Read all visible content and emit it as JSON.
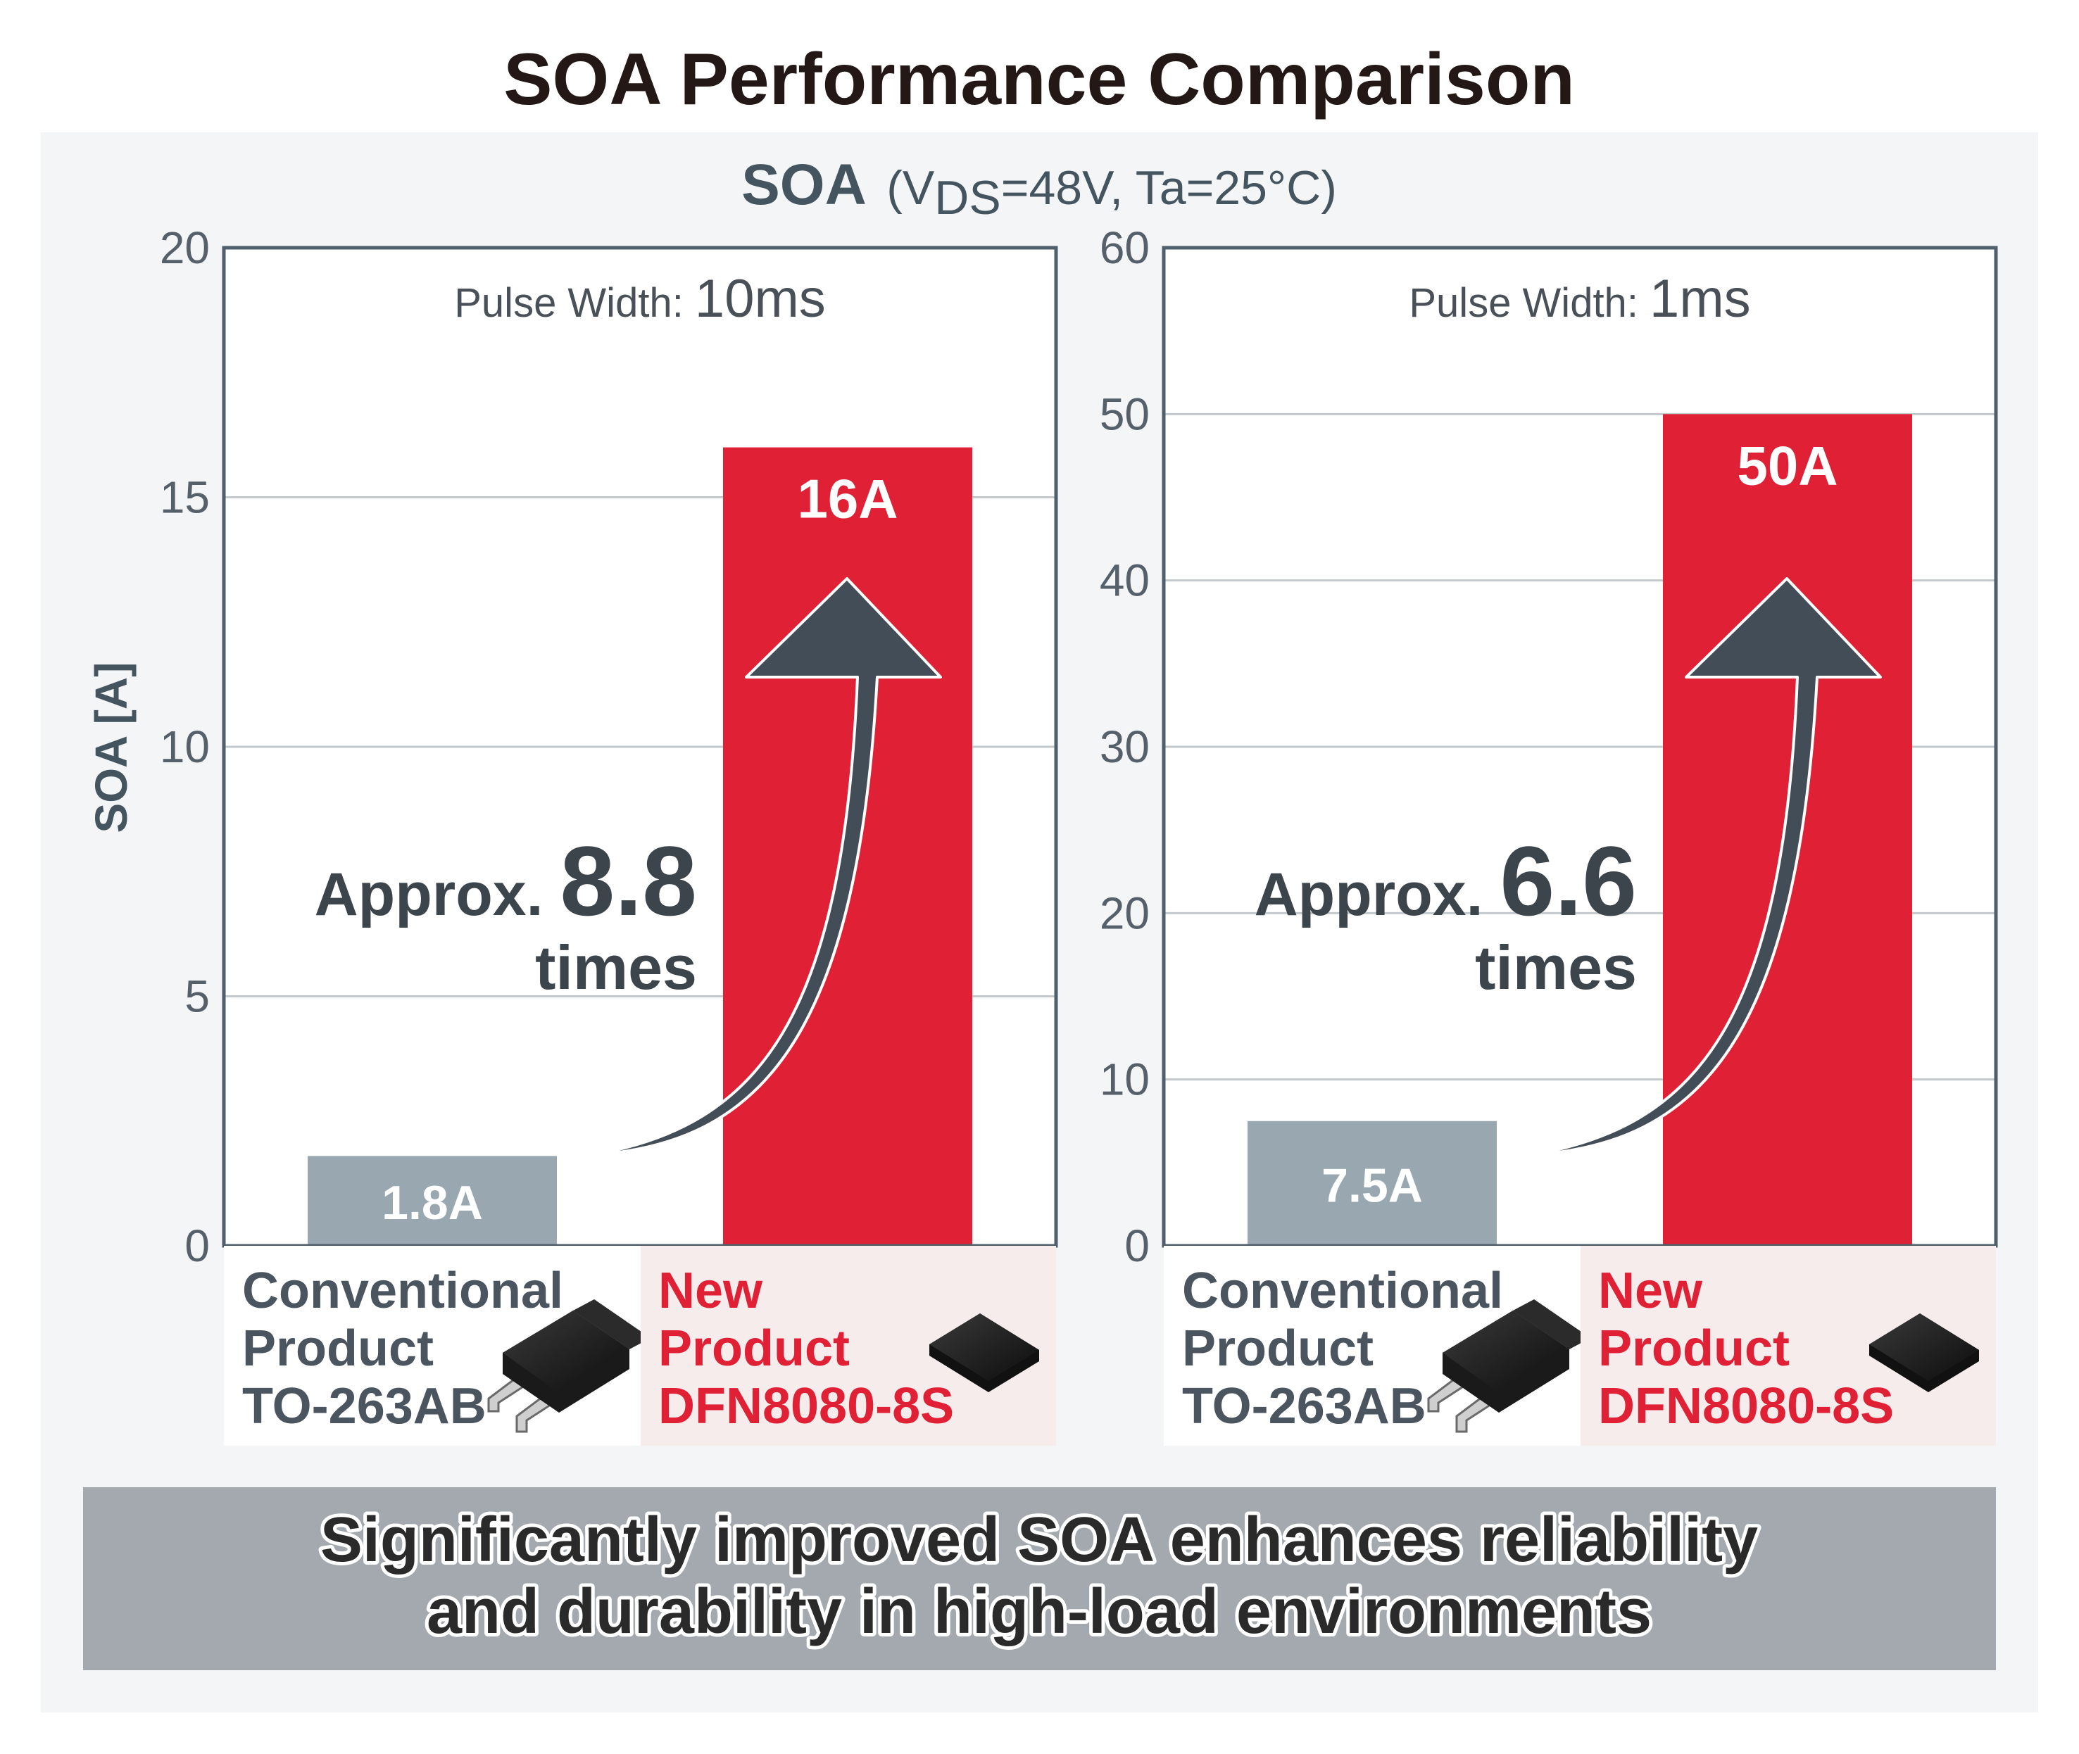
{
  "title": "SOA Performance Comparison",
  "subtitle": {
    "main": "SOA",
    "open": "(V",
    "sub": "DS",
    "rest": "=48V, Ta=25°C)"
  },
  "chart_data": [
    {
      "type": "bar",
      "title": "Pulse Width: 10ms",
      "pulse_label": "Pulse Width:",
      "pulse_value": "10ms",
      "ylabel": "SOA [A]",
      "ylim": [
        0,
        20
      ],
      "yticks": [
        0,
        5,
        10,
        15,
        20
      ],
      "grid": true,
      "categories": [
        "Conventional Product TO-263AB",
        "New Product DFN8080-8S"
      ],
      "values": [
        1.8,
        16
      ],
      "value_labels": [
        "1.8A",
        "16A"
      ],
      "colors": [
        "#99a8b0",
        "#e02035"
      ],
      "annotation": {
        "approx": "Approx.",
        "factor": "8.8",
        "times": "times"
      },
      "products": [
        {
          "line1": "Conventional",
          "line2": "Product",
          "line3": "TO-263AB",
          "package_icon": "to263-package-icon"
        },
        {
          "line1": "New",
          "line2": "Product",
          "line3": "DFN8080-8S",
          "package_icon": "dfn-package-icon"
        }
      ]
    },
    {
      "type": "bar",
      "title": "Pulse Width: 1ms",
      "pulse_label": "Pulse Width:",
      "pulse_value": "1ms",
      "ylabel": "",
      "ylim": [
        0,
        60
      ],
      "yticks": [
        0,
        10,
        20,
        30,
        40,
        50,
        60
      ],
      "grid": true,
      "categories": [
        "Conventional Product TO-263AB",
        "New Product DFN8080-8S"
      ],
      "values": [
        7.5,
        50
      ],
      "value_labels": [
        "7.5A",
        "50A"
      ],
      "colors": [
        "#99a8b0",
        "#e02035"
      ],
      "annotation": {
        "approx": "Approx.",
        "factor": "6.6",
        "times": "times"
      },
      "products": [
        {
          "line1": "Conventional",
          "line2": "Product",
          "line3": "TO-263AB",
          "package_icon": "to263-package-icon"
        },
        {
          "line1": "New",
          "line2": "Product",
          "line3": "DFN8080-8S",
          "package_icon": "dfn-package-icon"
        }
      ]
    }
  ],
  "banner": {
    "line1": "Significantly improved SOA enhances reliability",
    "line2": "and durability in high-load environments"
  },
  "colors": {
    "conventional": "#99a8b0",
    "new": "#e02035",
    "arrow": "#434d57",
    "axis": "#4f5f6c",
    "panel_bg": "#f3f5f7",
    "banner_bg": "#a3a9af",
    "new_label_bg": "#f6ecec"
  }
}
